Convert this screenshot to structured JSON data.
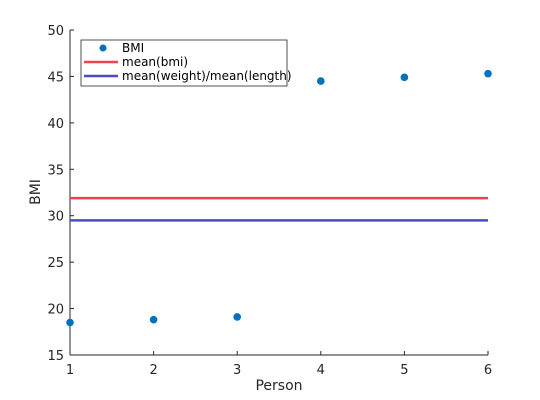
{
  "chart_data": {
    "type": "scatter",
    "xlabel": "Person",
    "ylabel": "BMI",
    "xlim": [
      1,
      6
    ],
    "ylim": [
      15,
      50
    ],
    "xticks": [
      1,
      2,
      3,
      4,
      5,
      6
    ],
    "yticks": [
      15,
      20,
      25,
      30,
      35,
      40,
      45,
      50
    ],
    "grid": false,
    "legend_position": "top-left",
    "series": [
      {
        "name": "BMI",
        "kind": "scatter",
        "color": "#0072BD",
        "x": [
          1,
          2,
          3,
          4,
          5,
          6
        ],
        "y": [
          18.5,
          18.8,
          19.1,
          44.5,
          44.9,
          45.3
        ]
      },
      {
        "name": "mean(bmi)",
        "kind": "hline",
        "color": "#E8454C",
        "y": 31.9
      },
      {
        "name": "mean(weight)/mean(length)",
        "kind": "hline",
        "color": "#4B4BC4",
        "y": 29.5
      }
    ]
  }
}
